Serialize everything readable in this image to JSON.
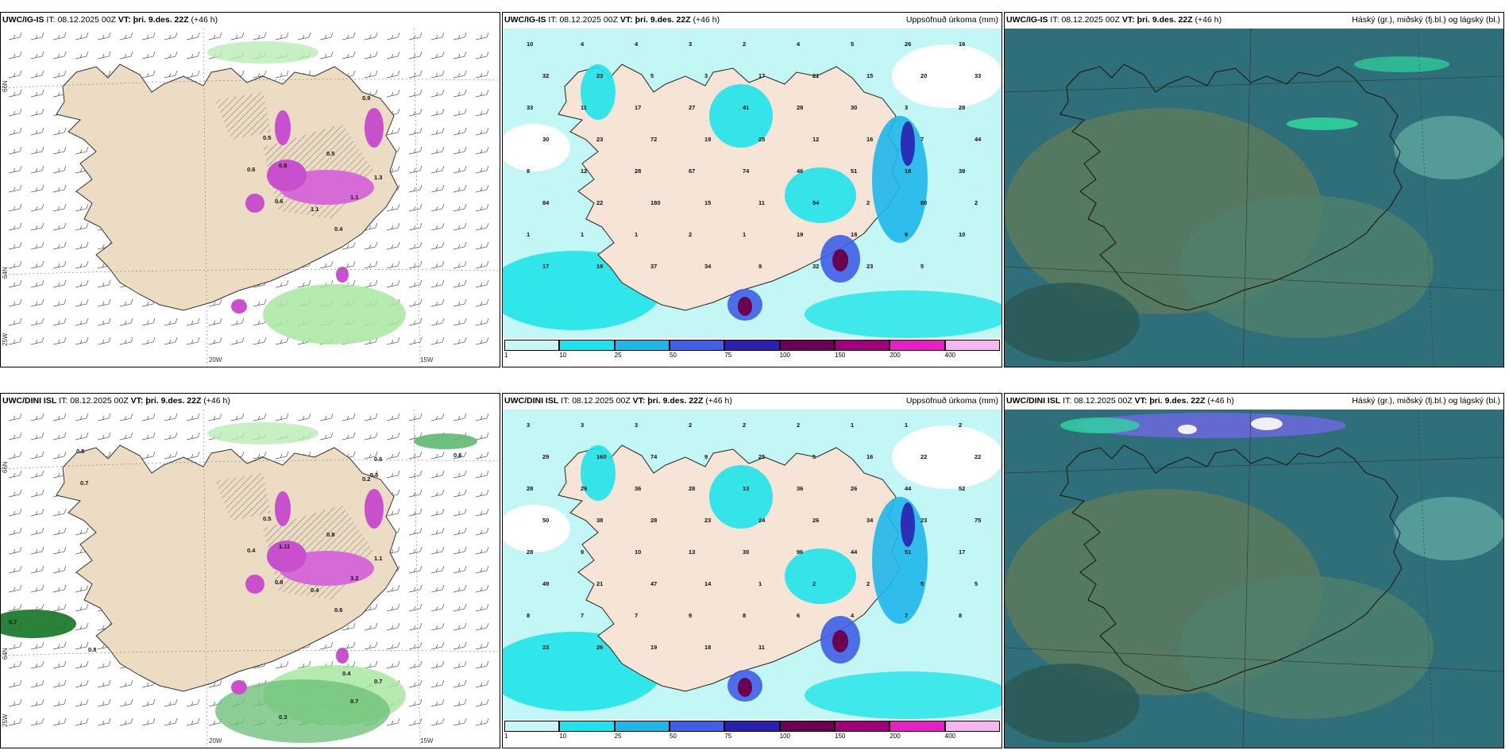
{
  "panels": [
    {
      "id": "p1",
      "model": "UWC/IG-IS",
      "it_label": "IT:",
      "it": "08.12.2025 00Z",
      "vt_label": "VT:",
      "vt": "þri. 9.des. 22Z",
      "lead": "(+46 h)",
      "title": "",
      "kind": "weather",
      "axis": {
        "lat_top": "66N",
        "lat_mid": "64N",
        "lon_left": "25W",
        "lon_mid": "20W",
        "lon_right": "15W"
      }
    },
    {
      "id": "p2",
      "model": "UWC/IG-IS",
      "it_label": "IT:",
      "it": "08.12.2025 00Z",
      "vt_label": "VT:",
      "vt": "þri. 9.des. 22Z",
      "lead": "(+46 h)",
      "title": "Uppsöfnuð úrkoma (mm)",
      "kind": "precip"
    },
    {
      "id": "p3",
      "model": "UWC/IG-IS",
      "it_label": "IT:",
      "it": "08.12.2025 00Z",
      "vt_label": "VT:",
      "vt": "þri. 9.des. 22Z",
      "lead": "(+46 h)",
      "title": "Háský (gr.), miðský (fj.bl.) og lágský (bl.)",
      "kind": "cloud"
    },
    {
      "id": "p4",
      "model": "UWC/DINI ISL",
      "it_label": "IT:",
      "it": "08.12.2025 00Z",
      "vt_label": "VT:",
      "vt": "þri. 9.des. 22Z",
      "lead": "(+46 h)",
      "title": "",
      "kind": "weather",
      "axis": {
        "lat_top": "66N",
        "lat_mid": "64N",
        "lon_left": "25W",
        "lon_mid": "20W",
        "lon_right": "15W"
      }
    },
    {
      "id": "p5",
      "model": "UWC/DINI ISL",
      "it_label": "IT:",
      "it": "08.12.2025 00Z",
      "vt_label": "VT:",
      "vt": "þri. 9.des. 22Z",
      "lead": "(+46 h)",
      "title": "Uppsöfnuð úrkoma (mm)",
      "kind": "precip"
    },
    {
      "id": "p6",
      "model": "UWC/DINI ISL",
      "it_label": "IT:",
      "it": "08.12.2025 00Z",
      "vt_label": "VT:",
      "vt": "þri. 9.des. 22Z",
      "lead": "(+46 h)",
      "title": "Háský (gr.), miðský (fj.bl.) og lágský (bl.)",
      "kind": "cloud"
    }
  ],
  "colorbar": {
    "ticks": [
      "1",
      "10",
      "25",
      "50",
      "75",
      "100",
      "150",
      "200",
      "400"
    ],
    "colors": [
      "#c9f7f7",
      "#1fe3ea",
      "#1fb6ea",
      "#3f5fe8",
      "#2a1fb0",
      "#6a0050",
      "#a0007a",
      "#e81fc4",
      "#f5b6f2"
    ]
  },
  "precip_labels": {
    "p2": [
      "10",
      "4",
      "4",
      "3",
      "2",
      "4",
      "5",
      "26",
      "16",
      "32",
      "23",
      "5",
      "3",
      "17",
      "21",
      "15",
      "20",
      "33",
      "33",
      "11",
      "17",
      "27",
      "41",
      "28",
      "30",
      "3",
      "28",
      "30",
      "23",
      "72",
      "19",
      "25",
      "12",
      "16",
      "7",
      "44",
      "8",
      "12",
      "28",
      "67",
      "74",
      "46",
      "51",
      "18",
      "39",
      "84",
      "22",
      "180",
      "15",
      "11",
      "54",
      "2",
      "80",
      "2",
      "1",
      "1",
      "1",
      "2",
      "1",
      "19",
      "18",
      "9",
      "10",
      "17",
      "19",
      "37",
      "34",
      "9",
      "32",
      "23",
      "5"
    ],
    "p5": [
      "3",
      "3",
      "3",
      "2",
      "2",
      "2",
      "1",
      "1",
      "2",
      "29",
      "160",
      "74",
      "9",
      "25",
      "5",
      "16",
      "22",
      "22",
      "28",
      "29",
      "36",
      "28",
      "13",
      "36",
      "26",
      "44",
      "52",
      "50",
      "38",
      "28",
      "23",
      "24",
      "26",
      "34",
      "23",
      "75",
      "28",
      "9",
      "10",
      "13",
      "30",
      "96",
      "44",
      "51",
      "17",
      "49",
      "21",
      "47",
      "14",
      "1",
      "2",
      "2",
      "5",
      "5",
      "8",
      "7",
      "7",
      "9",
      "8",
      "6",
      "4",
      "7",
      "8",
      "23",
      "26",
      "19",
      "18",
      "11"
    ]
  },
  "weather_labels": {
    "p1": [
      "0.9",
      "0.5",
      "0.8",
      "0.6",
      "1.1",
      "0.4",
      "1.1",
      "1.3",
      "0.6",
      "0.5"
    ],
    "p4": [
      "0.2",
      "0.5",
      "1.11",
      "0.4",
      "0.4",
      "0.6",
      "3.2",
      "1.1",
      "0.8",
      "0.8",
      "0.5",
      "0.7",
      "0.6",
      "0.5",
      "0.6",
      "0.8",
      "0.7",
      "0.7",
      "0.7",
      "0.4",
      "0.3"
    ]
  }
}
